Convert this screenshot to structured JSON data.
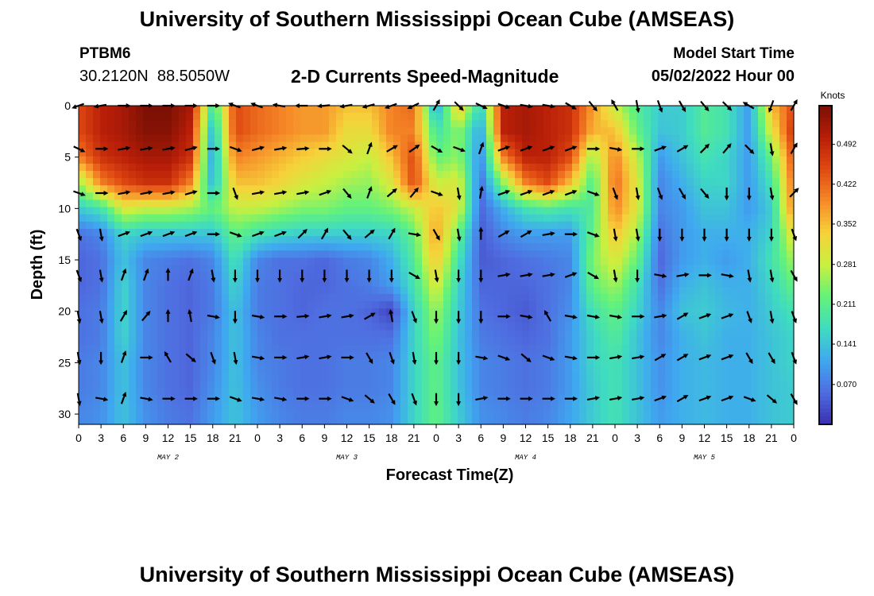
{
  "header": {
    "title": "University of Southern Mississippi Ocean Cube (AMSEAS)",
    "station_id": "PTBM6",
    "station_coords": "30.2120N  88.5050W",
    "subtitle": "2-D Currents Speed-Magnitude",
    "model_start_label": "Model Start Time",
    "model_start_value": "05/02/2022 Hour 00"
  },
  "footer": {
    "title_repeat": "University of Southern Mississippi Ocean Cube (AMSEAS)"
  },
  "colors": {
    "scale": [
      "#3a2fb0",
      "#4f6de0",
      "#3fa8f0",
      "#3fdcc0",
      "#63f27a",
      "#c8f040",
      "#f6d23a",
      "#f68a28",
      "#e04a12",
      "#b81e08",
      "#7a1004"
    ],
    "arrow": "#000000"
  },
  "chart_data": {
    "type": "heatmap",
    "title": "2-D Currents Speed-Magnitude",
    "xlabel": "Forecast Time(Z)",
    "ylabel": "Depth (ft)",
    "colorbar_label": "Knots",
    "colorbar_ticks": [
      0.07,
      0.141,
      0.211,
      0.281,
      0.352,
      0.422,
      0.492
    ],
    "colorbar_tick_labels": [
      "0.070",
      "0.141",
      "0.211",
      "0.281",
      "0.352",
      "0.422",
      "0.492"
    ],
    "colorbar_range": [
      0.0,
      0.56
    ],
    "x_tick_labels": [
      "0",
      "3",
      "6",
      "9",
      "12",
      "15",
      "18",
      "21",
      "0",
      "3",
      "6",
      "9",
      "12",
      "15",
      "18",
      "21",
      "0",
      "3",
      "6",
      "9",
      "12",
      "15",
      "18",
      "21",
      "0",
      "3",
      "6",
      "9",
      "12",
      "15",
      "18",
      "21",
      "0"
    ],
    "xlim": [
      0,
      96
    ],
    "date_labels": [
      {
        "label": "MAY 2",
        "hour": 12
      },
      {
        "label": "MAY 3",
        "hour": 36
      },
      {
        "label": "MAY 4",
        "hour": 60
      },
      {
        "label": "MAY 5",
        "hour": 84
      }
    ],
    "y_ticks": [
      0,
      5,
      10,
      15,
      20,
      25,
      30
    ],
    "y_tick_labels": [
      "0",
      "5",
      "10",
      "15",
      "20",
      "25",
      "30"
    ],
    "ylim": [
      0,
      31
    ],
    "arrow_depths": [
      0,
      4.2,
      8.5,
      12.5,
      16.5,
      20.5,
      24.5,
      28.5
    ],
    "arrow_hours": [
      0,
      3,
      6,
      9,
      12,
      15,
      18,
      21,
      24,
      27,
      30,
      33,
      36,
      39,
      42,
      45,
      48,
      51,
      54,
      57,
      60,
      63,
      66,
      69,
      72,
      75,
      78,
      81,
      84,
      87,
      90,
      93,
      96
    ],
    "hours": [
      0,
      3,
      6,
      9,
      12,
      15,
      18,
      21,
      24,
      27,
      30,
      33,
      36,
      39,
      42,
      45,
      48,
      51,
      54,
      57,
      60,
      63,
      66,
      69,
      72,
      75,
      78,
      81,
      84,
      87,
      90,
      93,
      96
    ],
    "depths": [
      0,
      2.5,
      5,
      7.5,
      10,
      12.5,
      15,
      17.5,
      20,
      22.5,
      25,
      27.5,
      30
    ],
    "speed": [
      [
        0.45,
        0.5,
        0.52,
        0.56,
        0.56,
        0.52,
        0.18,
        0.45,
        0.42,
        0.4,
        0.38,
        0.38,
        0.35,
        0.35,
        0.4,
        0.42,
        0.1,
        0.35,
        0.15,
        0.5,
        0.52,
        0.5,
        0.48,
        0.38,
        0.28,
        0.2,
        0.15,
        0.15,
        0.2,
        0.18,
        0.1,
        0.35,
        0.45
      ],
      [
        0.45,
        0.5,
        0.52,
        0.55,
        0.55,
        0.5,
        0.12,
        0.45,
        0.42,
        0.4,
        0.38,
        0.38,
        0.32,
        0.32,
        0.4,
        0.4,
        0.18,
        0.25,
        0.1,
        0.5,
        0.52,
        0.5,
        0.48,
        0.36,
        0.35,
        0.22,
        0.14,
        0.15,
        0.2,
        0.18,
        0.1,
        0.3,
        0.48
      ],
      [
        0.4,
        0.48,
        0.5,
        0.52,
        0.52,
        0.48,
        0.1,
        0.4,
        0.38,
        0.36,
        0.34,
        0.32,
        0.3,
        0.28,
        0.35,
        0.45,
        0.22,
        0.25,
        0.08,
        0.4,
        0.5,
        0.5,
        0.45,
        0.25,
        0.4,
        0.28,
        0.1,
        0.14,
        0.18,
        0.16,
        0.1,
        0.22,
        0.45
      ],
      [
        0.25,
        0.4,
        0.45,
        0.48,
        0.48,
        0.4,
        0.12,
        0.35,
        0.35,
        0.33,
        0.3,
        0.28,
        0.26,
        0.25,
        0.3,
        0.45,
        0.28,
        0.3,
        0.06,
        0.25,
        0.4,
        0.45,
        0.35,
        0.2,
        0.42,
        0.3,
        0.08,
        0.12,
        0.16,
        0.16,
        0.1,
        0.18,
        0.42
      ],
      [
        0.15,
        0.18,
        0.3,
        0.28,
        0.28,
        0.26,
        0.22,
        0.28,
        0.28,
        0.26,
        0.24,
        0.24,
        0.22,
        0.22,
        0.24,
        0.28,
        0.35,
        0.3,
        0.05,
        0.12,
        0.18,
        0.2,
        0.18,
        0.2,
        0.4,
        0.3,
        0.08,
        0.1,
        0.14,
        0.14,
        0.1,
        0.15,
        0.4
      ],
      [
        0.06,
        0.08,
        0.16,
        0.14,
        0.14,
        0.14,
        0.14,
        0.22,
        0.18,
        0.16,
        0.15,
        0.15,
        0.15,
        0.15,
        0.16,
        0.22,
        0.38,
        0.22,
        0.04,
        0.08,
        0.1,
        0.1,
        0.1,
        0.22,
        0.35,
        0.26,
        0.06,
        0.1,
        0.12,
        0.12,
        0.12,
        0.16,
        0.32
      ],
      [
        0.05,
        0.06,
        0.14,
        0.08,
        0.07,
        0.06,
        0.08,
        0.18,
        0.08,
        0.06,
        0.06,
        0.05,
        0.07,
        0.08,
        0.12,
        0.2,
        0.35,
        0.18,
        0.04,
        0.05,
        0.06,
        0.07,
        0.08,
        0.24,
        0.3,
        0.22,
        0.05,
        0.1,
        0.12,
        0.1,
        0.12,
        0.18,
        0.26
      ],
      [
        0.05,
        0.06,
        0.16,
        0.08,
        0.06,
        0.05,
        0.07,
        0.16,
        0.07,
        0.06,
        0.05,
        0.05,
        0.06,
        0.07,
        0.1,
        0.18,
        0.3,
        0.16,
        0.05,
        0.05,
        0.05,
        0.06,
        0.08,
        0.22,
        0.26,
        0.18,
        0.06,
        0.12,
        0.14,
        0.12,
        0.12,
        0.16,
        0.22
      ],
      [
        0.06,
        0.07,
        0.16,
        0.08,
        0.06,
        0.05,
        0.07,
        0.14,
        0.07,
        0.06,
        0.05,
        0.06,
        0.06,
        0.05,
        0.02,
        0.16,
        0.26,
        0.15,
        0.06,
        0.05,
        0.04,
        0.06,
        0.09,
        0.18,
        0.22,
        0.16,
        0.08,
        0.14,
        0.15,
        0.13,
        0.12,
        0.15,
        0.18
      ],
      [
        0.06,
        0.07,
        0.16,
        0.08,
        0.06,
        0.05,
        0.08,
        0.14,
        0.08,
        0.06,
        0.06,
        0.06,
        0.06,
        0.06,
        0.06,
        0.16,
        0.24,
        0.14,
        0.07,
        0.06,
        0.05,
        0.06,
        0.1,
        0.16,
        0.2,
        0.14,
        0.08,
        0.12,
        0.14,
        0.12,
        0.12,
        0.14,
        0.16
      ],
      [
        0.07,
        0.08,
        0.14,
        0.08,
        0.06,
        0.05,
        0.08,
        0.14,
        0.08,
        0.07,
        0.06,
        0.06,
        0.07,
        0.07,
        0.08,
        0.16,
        0.22,
        0.14,
        0.08,
        0.07,
        0.06,
        0.07,
        0.1,
        0.16,
        0.18,
        0.14,
        0.09,
        0.12,
        0.13,
        0.12,
        0.12,
        0.14,
        0.16
      ],
      [
        0.07,
        0.08,
        0.14,
        0.08,
        0.06,
        0.05,
        0.09,
        0.14,
        0.09,
        0.07,
        0.06,
        0.06,
        0.07,
        0.07,
        0.08,
        0.16,
        0.22,
        0.14,
        0.08,
        0.07,
        0.06,
        0.07,
        0.1,
        0.15,
        0.18,
        0.14,
        0.09,
        0.12,
        0.13,
        0.12,
        0.12,
        0.14,
        0.15
      ],
      [
        0.08,
        0.09,
        0.14,
        0.09,
        0.07,
        0.06,
        0.1,
        0.14,
        0.1,
        0.08,
        0.07,
        0.07,
        0.08,
        0.08,
        0.09,
        0.16,
        0.22,
        0.15,
        0.09,
        0.08,
        0.07,
        0.08,
        0.11,
        0.15,
        0.18,
        0.14,
        0.1,
        0.12,
        0.13,
        0.12,
        0.12,
        0.14,
        0.15
      ]
    ],
    "direction": [
      [
        250,
        260,
        90,
        90,
        90,
        90,
        90,
        290,
        290,
        280,
        270,
        265,
        260,
        255,
        250,
        245,
        30,
        135,
        115,
        110,
        100,
        100,
        120,
        140,
        330,
        170,
        160,
        150,
        140,
        135,
        300,
        200,
        30
      ],
      [
        115,
        90,
        80,
        80,
        80,
        75,
        90,
        110,
        75,
        80,
        85,
        90,
        130,
        20,
        60,
        55,
        120,
        110,
        20,
        70,
        70,
        70,
        70,
        90,
        100,
        90,
        70,
        60,
        45,
        40,
        135,
        170,
        30
      ],
      [
        110,
        90,
        80,
        80,
        80,
        75,
        90,
        160,
        80,
        80,
        80,
        70,
        140,
        20,
        50,
        40,
        110,
        170,
        10,
        70,
        70,
        70,
        70,
        110,
        160,
        170,
        160,
        150,
        140,
        180,
        180,
        170,
        45
      ],
      [
        160,
        170,
        70,
        70,
        70,
        70,
        90,
        110,
        70,
        70,
        45,
        30,
        140,
        50,
        30,
        100,
        150,
        170,
        0,
        60,
        60,
        80,
        90,
        110,
        170,
        170,
        180,
        180,
        180,
        180,
        180,
        180,
        160
      ],
      [
        160,
        170,
        20,
        20,
        0,
        20,
        170,
        180,
        180,
        180,
        180,
        180,
        180,
        180,
        180,
        120,
        170,
        180,
        180,
        80,
        80,
        80,
        70,
        120,
        170,
        180,
        100,
        80,
        90,
        100,
        170,
        170,
        150
      ],
      [
        170,
        170,
        30,
        40,
        0,
        350,
        100,
        180,
        100,
        90,
        85,
        80,
        80,
        60,
        350,
        160,
        180,
        180,
        180,
        90,
        100,
        330,
        100,
        100,
        100,
        90,
        80,
        60,
        70,
        70,
        160,
        170,
        160
      ],
      [
        170,
        180,
        20,
        90,
        330,
        130,
        160,
        170,
        100,
        90,
        80,
        80,
        90,
        150,
        160,
        170,
        180,
        180,
        100,
        110,
        130,
        110,
        100,
        90,
        80,
        80,
        60,
        60,
        70,
        70,
        150,
        150,
        160
      ],
      [
        170,
        100,
        20,
        100,
        90,
        90,
        90,
        110,
        100,
        100,
        90,
        90,
        110,
        130,
        150,
        160,
        180,
        180,
        80,
        90,
        90,
        90,
        90,
        80,
        80,
        80,
        70,
        60,
        70,
        70,
        110,
        130,
        150
      ]
    ]
  }
}
